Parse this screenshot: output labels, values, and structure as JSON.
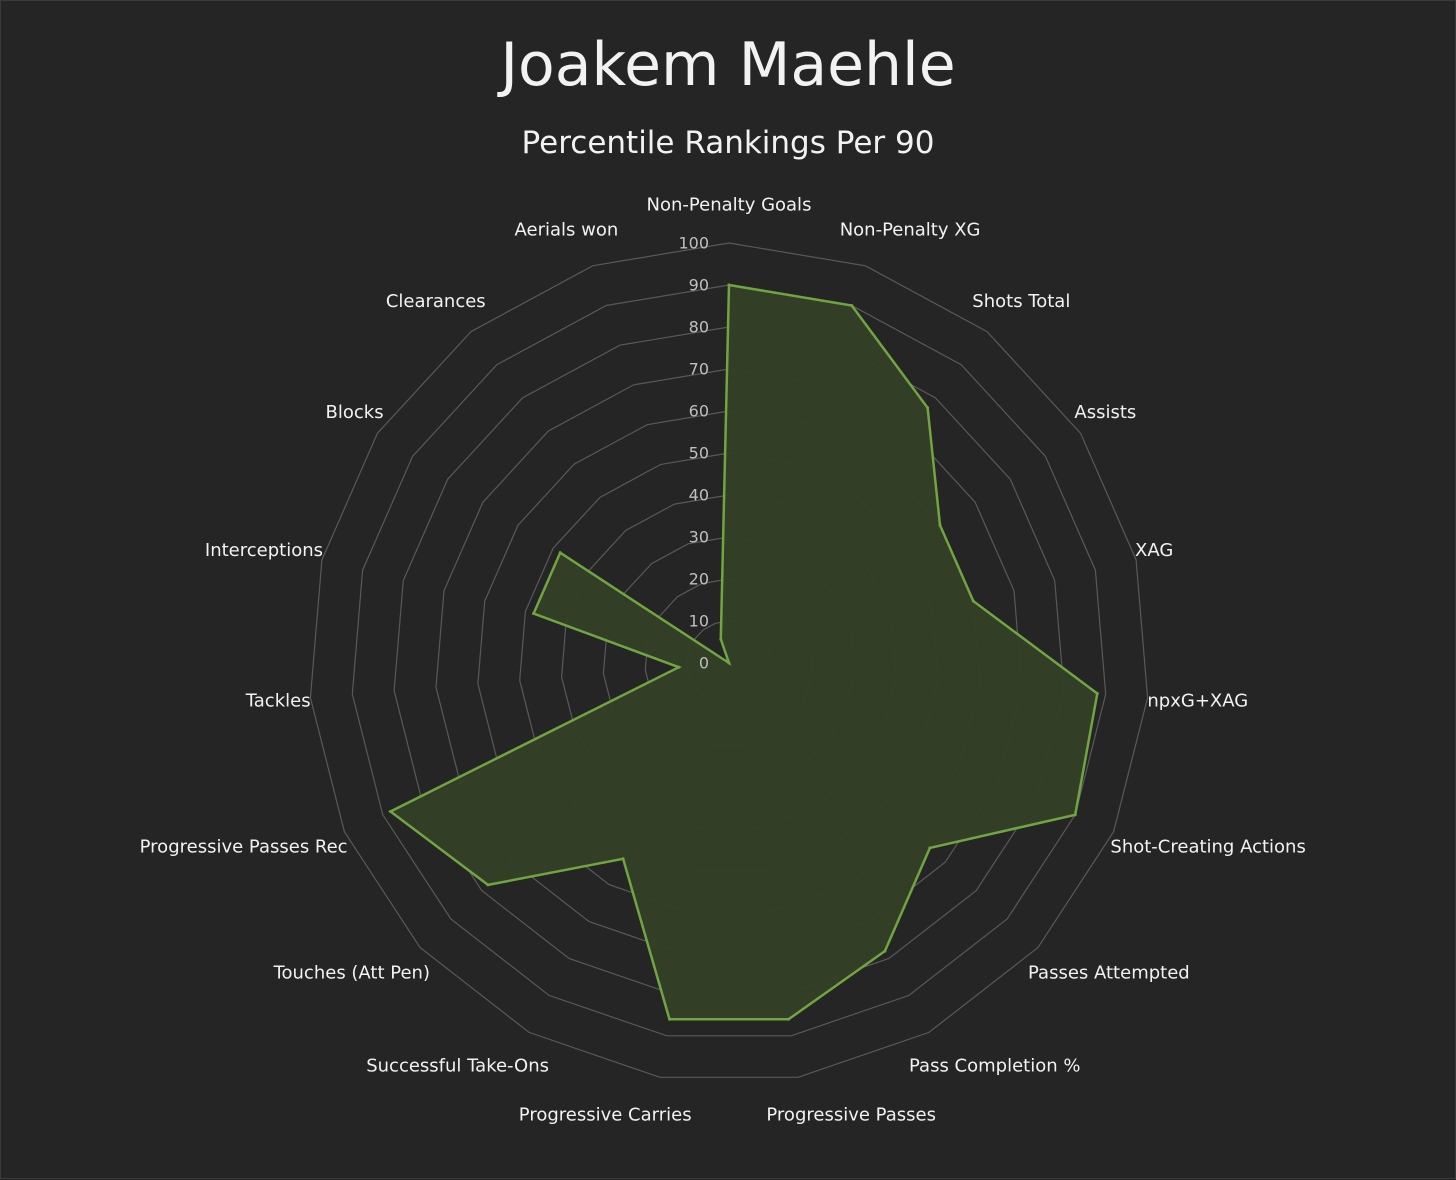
{
  "chart_data": {
    "type": "radar",
    "title": "Joakem Maehle",
    "subtitle": "Percentile Rankings Per 90",
    "rlim": [
      0,
      100
    ],
    "r_ticks": [
      0,
      10,
      20,
      30,
      40,
      50,
      60,
      70,
      80,
      90,
      100
    ],
    "grid": true,
    "categories": [
      "Non-Penalty Goals",
      "Non-Penalty XG",
      "Shots Total",
      "Assists",
      "XAG",
      "npxG+XAG",
      "Shot-Creating Actions",
      "Passes Attempted",
      "Pass Completion %",
      "Progressive Passes",
      "Progressive Carries",
      "Successful Take-Ons",
      "Touches (Att Pen)",
      "Progressive Passes Rec",
      "Tackles",
      "Interceptions",
      "Blocks",
      "Clearances",
      "Aerials won"
    ],
    "series": [
      {
        "values": [
          90,
          90,
          77,
          60,
          60,
          88,
          90,
          65,
          78,
          86,
          86,
          53,
          78,
          88,
          12,
          48,
          48,
          0,
          6
        ]
      }
    ],
    "colors": {
      "background": "#252525",
      "grid": "#595959",
      "fill": "#333f26",
      "line": "#70a542",
      "text": "#f2f2f2",
      "tick_text": "#bfbfbf"
    }
  }
}
